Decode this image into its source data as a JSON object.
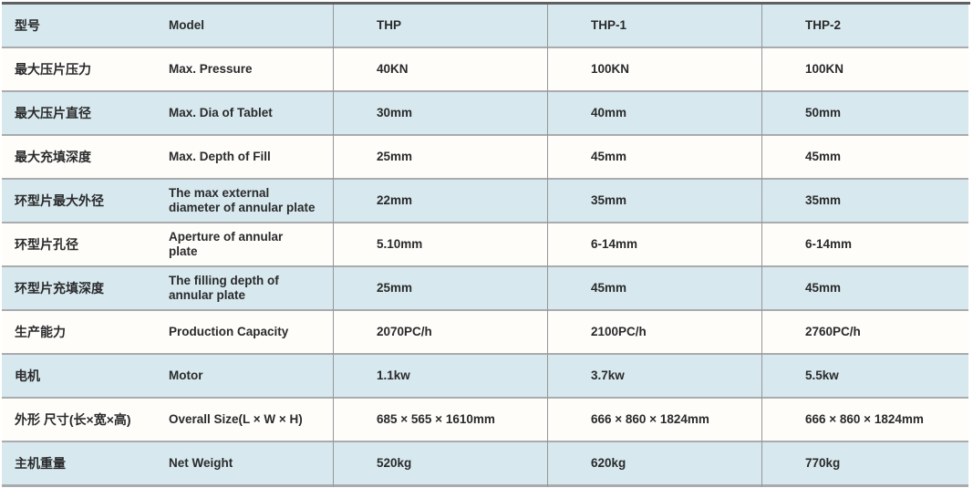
{
  "colors": {
    "row_teal": "#d7e9ee",
    "row_white": "#fefdfa",
    "top_border": "#5f6062",
    "grid_line": "#a9abad",
    "column_line": "#949699",
    "text": "#2a2a2c",
    "page_bg": "#ffffff"
  },
  "table": {
    "header": {
      "cn": "型号",
      "en": "Model",
      "thp": "THP",
      "thp1": "THP-1",
      "thp2": "THP-2"
    },
    "rows": [
      {
        "cn": "最大压片压力",
        "en": "Max. Pressure",
        "thp": "40KN",
        "thp1": "100KN",
        "thp2": "100KN"
      },
      {
        "cn": "最大压片直径",
        "en": "Max. Dia of Tablet",
        "thp": "30mm",
        "thp1": "40mm",
        "thp2": "50mm"
      },
      {
        "cn": "最大充填深度",
        "en": "Max. Depth of Fill",
        "thp": "25mm",
        "thp1": "45mm",
        "thp2": "45mm"
      },
      {
        "cn": "环型片最大外径",
        "en": "The max external\ndiameter of annular plate",
        "thp": "22mm",
        "thp1": "35mm",
        "thp2": "35mm"
      },
      {
        "cn": "环型片孔径",
        "en": "Aperture of annular\nplate",
        "thp": "5.10mm",
        "thp1": "6-14mm",
        "thp2": "6-14mm"
      },
      {
        "cn": "环型片充填深度",
        "en": "The filling depth of\nannular plate",
        "thp": "25mm",
        "thp1": "45mm",
        "thp2": "45mm"
      },
      {
        "cn": "生产能力",
        "en": "Production Capacity",
        "thp": "2070PC/h",
        "thp1": "2100PC/h",
        "thp2": "2760PC/h"
      },
      {
        "cn": "电机",
        "en": "Motor",
        "thp": "1.1kw",
        "thp1": "3.7kw",
        "thp2": "5.5kw"
      },
      {
        "cn": "外形 尺寸(长×宽×高)",
        "en": "Overall Size(L × W × H)",
        "thp": "685 × 565 × 1610mm",
        "thp1": "666 × 860 × 1824mm",
        "thp2": "666 × 860 × 1824mm"
      },
      {
        "cn": "主机重量",
        "en": "Net Weight",
        "thp": "520kg",
        "thp1": "620kg",
        "thp2": "770kg"
      }
    ]
  }
}
